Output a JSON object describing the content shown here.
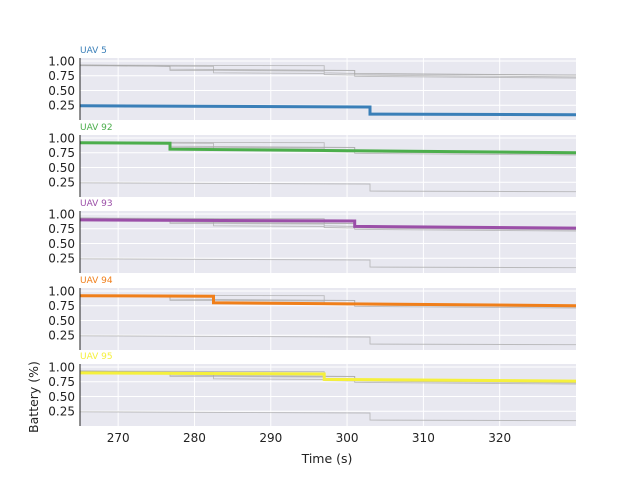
{
  "chart_data": {
    "type": "line",
    "xlabel": "Time (s)",
    "ylabel": "Battery (%)",
    "xlim": [
      265,
      330
    ],
    "ylim": [
      0.0,
      1.05
    ],
    "x_ticks": [
      270,
      280,
      290,
      300,
      310,
      320
    ],
    "x_tick_labels": [
      "270",
      "280",
      "290",
      "300",
      "310",
      "320"
    ],
    "y_ticks": [
      0.25,
      0.5,
      0.75,
      1.0
    ],
    "y_tick_labels": [
      "0.25",
      "0.50",
      "0.75",
      "1.00"
    ],
    "grid": true,
    "background_color": "#e8e8f0",
    "background_series_color": "#aaaaaa",
    "panels": [
      {
        "name": "UAV 5",
        "color": "#3a7fb8",
        "points": [
          [
            265,
            0.24
          ],
          [
            303,
            0.22
          ],
          [
            303,
            0.1
          ],
          [
            330,
            0.09
          ]
        ]
      },
      {
        "name": "UAV 92",
        "color": "#4cae4c",
        "points": [
          [
            265,
            0.92
          ],
          [
            276.8,
            0.91
          ],
          [
            276.8,
            0.81
          ],
          [
            330,
            0.75
          ]
        ]
      },
      {
        "name": "UAV 93",
        "color": "#9b4fa8",
        "points": [
          [
            265,
            0.9
          ],
          [
            301,
            0.88
          ],
          [
            301,
            0.79
          ],
          [
            330,
            0.76
          ]
        ]
      },
      {
        "name": "UAV 94",
        "color": "#f07f1a",
        "points": [
          [
            265,
            0.92
          ],
          [
            282.5,
            0.91
          ],
          [
            282.5,
            0.8
          ],
          [
            330,
            0.75
          ]
        ]
      },
      {
        "name": "UAV 95",
        "color": "#f5f03c",
        "points": [
          [
            265,
            0.9
          ],
          [
            297,
            0.88
          ],
          [
            297,
            0.79
          ],
          [
            330,
            0.76
          ]
        ]
      }
    ],
    "background_series": [
      [
        [
          265,
          0.93
        ],
        [
          276.8,
          0.91
        ],
        [
          276.8,
          0.84
        ],
        [
          282.5,
          0.84
        ],
        [
          282.5,
          0.8
        ],
        [
          297,
          0.79
        ],
        [
          297,
          0.77
        ],
        [
          301,
          0.76
        ],
        [
          301,
          0.74
        ],
        [
          330,
          0.71
        ]
      ],
      [
        [
          265,
          0.92
        ],
        [
          282.5,
          0.91
        ],
        [
          282.5,
          0.84
        ],
        [
          297,
          0.83
        ],
        [
          297,
          0.8
        ],
        [
          301,
          0.79
        ],
        [
          301,
          0.76
        ],
        [
          330,
          0.73
        ]
      ],
      [
        [
          265,
          0.93
        ],
        [
          297,
          0.92
        ],
        [
          297,
          0.84
        ],
        [
          301,
          0.84
        ],
        [
          301,
          0.78
        ],
        [
          330,
          0.76
        ]
      ],
      [
        [
          265,
          0.93
        ],
        [
          276.8,
          0.91
        ],
        [
          276.8,
          0.86
        ],
        [
          301,
          0.84
        ],
        [
          301,
          0.79
        ],
        [
          330,
          0.76
        ]
      ],
      [
        [
          265,
          0.24
        ],
        [
          303,
          0.22
        ],
        [
          303,
          0.1
        ],
        [
          330,
          0.09
        ]
      ]
    ]
  }
}
